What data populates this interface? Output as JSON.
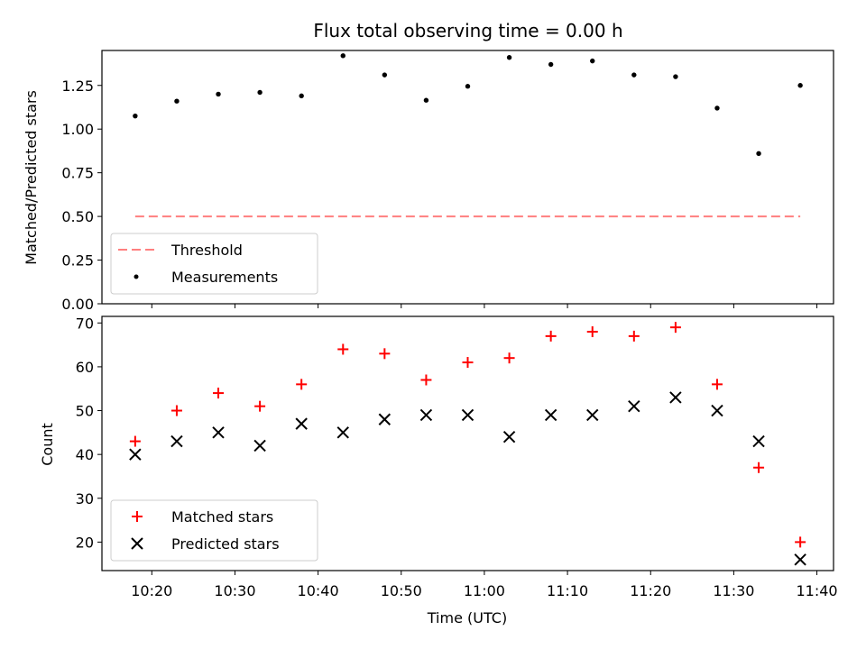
{
  "chart_data": [
    {
      "type": "scatter",
      "title": "Flux total observing time = 0.00 h",
      "ylabel": "Matched/Predicted stars",
      "xlabel": "",
      "ylim": [
        0,
        1.45
      ],
      "yticks": [
        "0.00",
        "0.25",
        "0.50",
        "0.75",
        "1.00",
        "1.25"
      ],
      "yticks_values": [
        0,
        0.25,
        0.5,
        0.75,
        1.0,
        1.25
      ],
      "grid": false,
      "legend_position": "lower-left",
      "series": [
        {
          "name": "Measurements",
          "marker": "dot",
          "color": "#000000",
          "x": [
            "10:18",
            "10:23",
            "10:28",
            "10:33",
            "10:38",
            "10:43",
            "10:48",
            "10:53",
            "10:58",
            "11:03",
            "11:08",
            "11:13",
            "11:18",
            "11:23",
            "11:28",
            "11:33",
            "11:38"
          ],
          "values": [
            1.075,
            1.16,
            1.2,
            1.21,
            1.19,
            1.42,
            1.31,
            1.165,
            1.245,
            1.41,
            1.37,
            1.39,
            1.31,
            1.3,
            1.12,
            0.86,
            1.25
          ]
        },
        {
          "name": "Threshold",
          "marker": "dashed-line",
          "color": "#ff7f7f",
          "x": [
            "10:18",
            "11:38"
          ],
          "values": [
            0.5,
            0.5
          ]
        }
      ]
    },
    {
      "type": "scatter",
      "title": "",
      "ylabel": "Count",
      "xlabel": "Time (UTC)",
      "ylim": [
        13.5,
        71.5
      ],
      "yticks": [
        "20",
        "30",
        "40",
        "50",
        "60",
        "70"
      ],
      "yticks_values": [
        20,
        30,
        40,
        50,
        60,
        70
      ],
      "xticks": [
        "10:20",
        "10:30",
        "10:40",
        "10:50",
        "11:00",
        "11:10",
        "11:20",
        "11:30",
        "11:40"
      ],
      "grid": false,
      "legend_position": "lower-left",
      "series": [
        {
          "name": "Matched stars",
          "marker": "plus",
          "color": "#ff0000",
          "x": [
            "10:18",
            "10:23",
            "10:28",
            "10:33",
            "10:38",
            "10:43",
            "10:48",
            "10:53",
            "10:58",
            "11:03",
            "11:08",
            "11:13",
            "11:18",
            "11:23",
            "11:28",
            "11:33",
            "11:38"
          ],
          "values": [
            43,
            50,
            54,
            51,
            56,
            64,
            63,
            57,
            61,
            62,
            67,
            68,
            67,
            69,
            56,
            37,
            20
          ]
        },
        {
          "name": "Predicted stars",
          "marker": "x",
          "color": "#000000",
          "x": [
            "10:18",
            "10:23",
            "10:28",
            "10:33",
            "10:38",
            "10:43",
            "10:48",
            "10:53",
            "10:58",
            "11:03",
            "11:08",
            "11:13",
            "11:18",
            "11:23",
            "11:28",
            "11:33",
            "11:38"
          ],
          "values": [
            40,
            43,
            45,
            42,
            47,
            45,
            48,
            49,
            49,
            44,
            49,
            49,
            51,
            53,
            50,
            43,
            16
          ]
        }
      ]
    }
  ],
  "x_domain": [
    "10:14",
    "11:42"
  ]
}
